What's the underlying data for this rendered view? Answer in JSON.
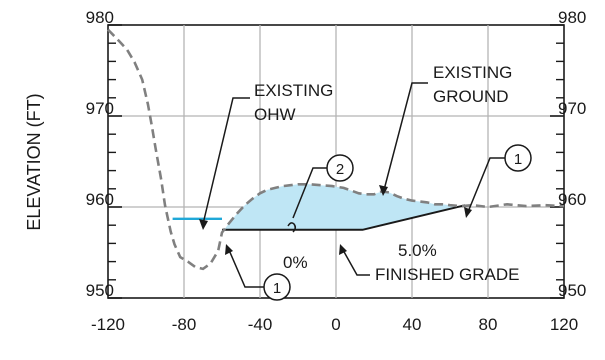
{
  "chart_data": {
    "type": "line",
    "ylabel": "ELEVATION (FT)",
    "xlabel": "",
    "x_ticks": [
      "-120",
      "-80",
      "-40",
      "0",
      "40",
      "80",
      "120"
    ],
    "y_ticks_left": [
      "950",
      "960",
      "970",
      "980"
    ],
    "y_ticks_right": [
      "950",
      "960",
      "970",
      "980"
    ],
    "xlim": [
      -120,
      120
    ],
    "ylim": [
      950,
      980
    ],
    "grid": true,
    "colors": {
      "existing_ground": "#808080",
      "ohw": "#1fa8d8",
      "fill": "#bfe6f5",
      "finished_grade": "#1a1a1a"
    },
    "existing_ground": {
      "x": [
        -120,
        -114,
        -110,
        -106,
        -102,
        -99,
        -97,
        -95,
        -92,
        -90,
        -87,
        -85,
        -82,
        -78,
        -74,
        -70,
        -66,
        -62,
        -60,
        -56,
        -52,
        -48,
        -44,
        -40,
        -36,
        -32,
        -28,
        -24,
        -20,
        -14,
        -8,
        -2,
        4,
        8,
        12,
        16,
        20,
        24,
        28,
        32,
        36,
        40,
        44,
        48,
        52,
        56,
        60,
        66,
        72,
        80,
        90,
        100,
        110,
        120
      ],
      "y": [
        979.5,
        978.2,
        977.3,
        975.9,
        974.0,
        971.3,
        969.0,
        966.5,
        963.0,
        960.2,
        957.3,
        955.9,
        954.5,
        954.0,
        953.4,
        953.2,
        953.8,
        955.2,
        957.2,
        958.3,
        959.3,
        960.2,
        960.9,
        961.5,
        961.9,
        962.1,
        962.3,
        962.4,
        962.5,
        962.5,
        962.4,
        962.3,
        962.1,
        961.8,
        961.5,
        961.4,
        961.4,
        961.7,
        961.6,
        961.2,
        960.9,
        960.7,
        960.6,
        960.5,
        960.3,
        960.3,
        960.2,
        960.1,
        960.2,
        960.0,
        960.3,
        960.1,
        960.2,
        960.1
      ]
    },
    "ohw_line": {
      "x": [
        -86,
        -60
      ],
      "y": [
        958.7,
        958.7
      ]
    },
    "finished_grade": {
      "x": [
        -60,
        14,
        68
      ],
      "y": [
        957.5,
        957.5,
        960.2
      ]
    },
    "fill_region_note": "area between existing ground and finished grade"
  },
  "labels": {
    "existing_ohw_line1": "EXISTING",
    "existing_ohw_line2": "OHW",
    "existing_ground_line1": "EXISTING",
    "existing_ground_line2": "GROUND",
    "zero_pct": "0%",
    "five_pct": "5.0%",
    "finished_grade": "FINISHED GRADE",
    "callout_1": "1",
    "callout_2": "2"
  }
}
